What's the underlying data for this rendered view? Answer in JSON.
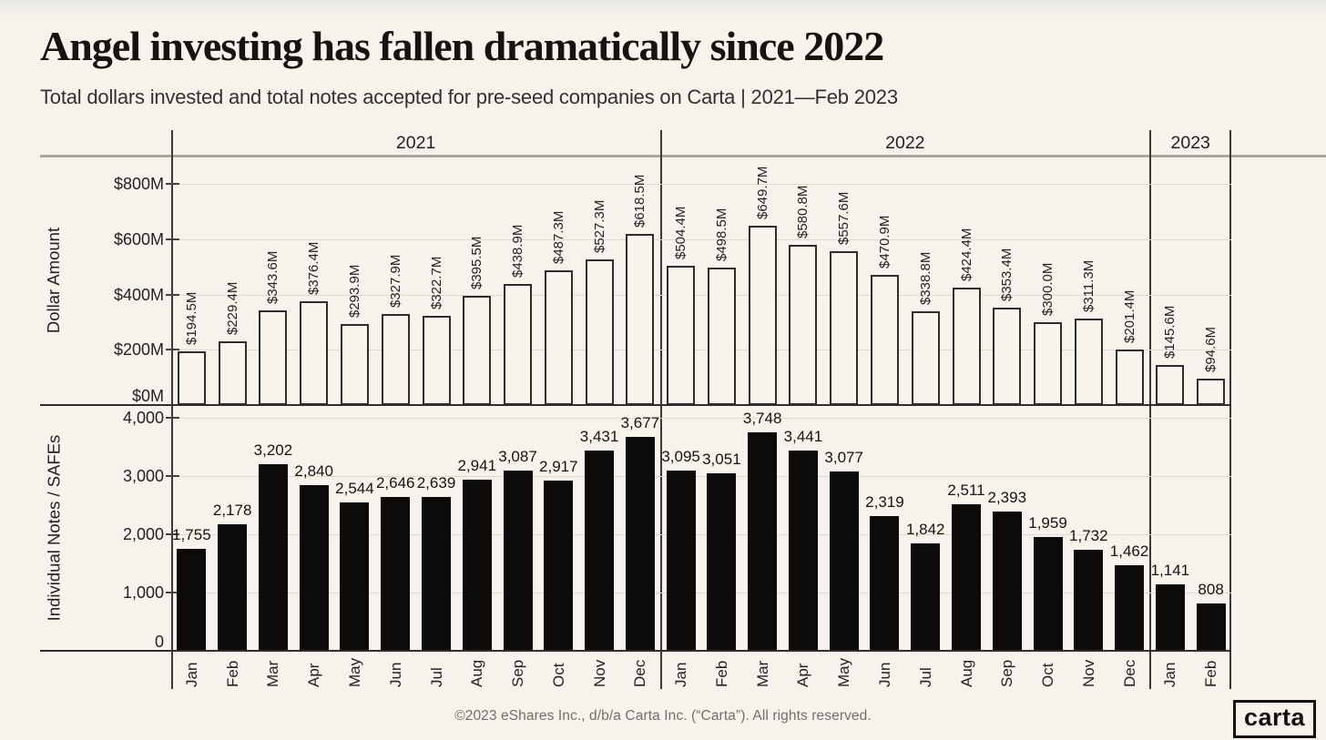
{
  "page": {
    "footer": "©2023 eShares Inc., d/b/a Carta Inc. (“Carta”). All rights reserved.",
    "logo_text": "carta"
  },
  "chart_data": {
    "type": "bar",
    "title": "Angel investing has fallen dramatically since 2022",
    "subtitle": "Total dollars invested and total notes accepted for pre-seed companies on Carta | 2021—Feb 2023",
    "grid": true,
    "legend": null,
    "x_groups": [
      {
        "year": "2021",
        "months": [
          "Jan",
          "Feb",
          "Mar",
          "Apr",
          "May",
          "Jun",
          "Jul",
          "Aug",
          "Sep",
          "Oct",
          "Nov",
          "Dec"
        ]
      },
      {
        "year": "2022",
        "months": [
          "Jan",
          "Feb",
          "Mar",
          "Apr",
          "May",
          "Jun",
          "Jul",
          "Aug",
          "Sep",
          "Oct",
          "Nov",
          "Dec"
        ]
      },
      {
        "year": "2023",
        "months": [
          "Jan",
          "Feb"
        ]
      }
    ],
    "panels": [
      {
        "id": "dollar-amount",
        "ylabel": "Dollar Amount",
        "bar_style": "outline",
        "label_orientation": "vertical",
        "ytick_labels": [
          "$0M",
          "$200M",
          "$400M",
          "$600M",
          "$800M"
        ],
        "ytick_values": [
          0,
          200,
          400,
          600,
          800
        ],
        "ylim": [
          0,
          900
        ],
        "unit": "USD millions",
        "values": [
          194.5,
          229.4,
          343.6,
          376.4,
          293.9,
          327.9,
          322.7,
          395.5,
          438.9,
          487.3,
          527.3,
          618.5,
          504.4,
          498.5,
          649.7,
          580.8,
          557.6,
          470.9,
          338.8,
          424.4,
          353.4,
          300.0,
          311.3,
          201.4,
          145.6,
          94.6
        ],
        "bar_labels": [
          "$194.5M",
          "$229.4M",
          "$343.6M",
          "$376.4M",
          "$293.9M",
          "$327.9M",
          "$322.7M",
          "$395.5M",
          "$438.9M",
          "$487.3M",
          "$527.3M",
          "$618.5M",
          "$504.4M",
          "$498.5M",
          "$649.7M",
          "$580.8M",
          "$557.6M",
          "$470.9M",
          "$338.8M",
          "$424.4M",
          "$353.4M",
          "$300.0M",
          "$311.3M",
          "$201.4M",
          "$145.6M",
          "$94.6M"
        ]
      },
      {
        "id": "notes-safes",
        "ylabel": "Individual Notes / SAFEs",
        "bar_style": "solid",
        "label_orientation": "horizontal",
        "ytick_labels": [
          "0",
          "1,000",
          "2,000",
          "3,000",
          "4,000"
        ],
        "ytick_values": [
          0,
          1000,
          2000,
          3000,
          4000
        ],
        "ylim": [
          0,
          4200
        ],
        "unit": "count",
        "values": [
          1755,
          2178,
          3202,
          2840,
          2544,
          2646,
          2639,
          2941,
          3087,
          2917,
          3431,
          3677,
          3095,
          3051,
          3748,
          3441,
          3077,
          2319,
          1842,
          2511,
          2393,
          1959,
          1732,
          1462,
          1141,
          808
        ],
        "bar_labels": [
          "1,755",
          "2,178",
          "3,202",
          "2,840",
          "2,544",
          "2,646",
          "2,639",
          "2,941",
          "3,087",
          "2,917",
          "3,431",
          "3,677",
          "3,095",
          "3,051",
          "3,748",
          "3,441",
          "3,077",
          "2,319",
          "1,842",
          "2,511",
          "2,393",
          "1,959",
          "1,732",
          "1,462",
          "1,141",
          "808"
        ]
      }
    ]
  }
}
